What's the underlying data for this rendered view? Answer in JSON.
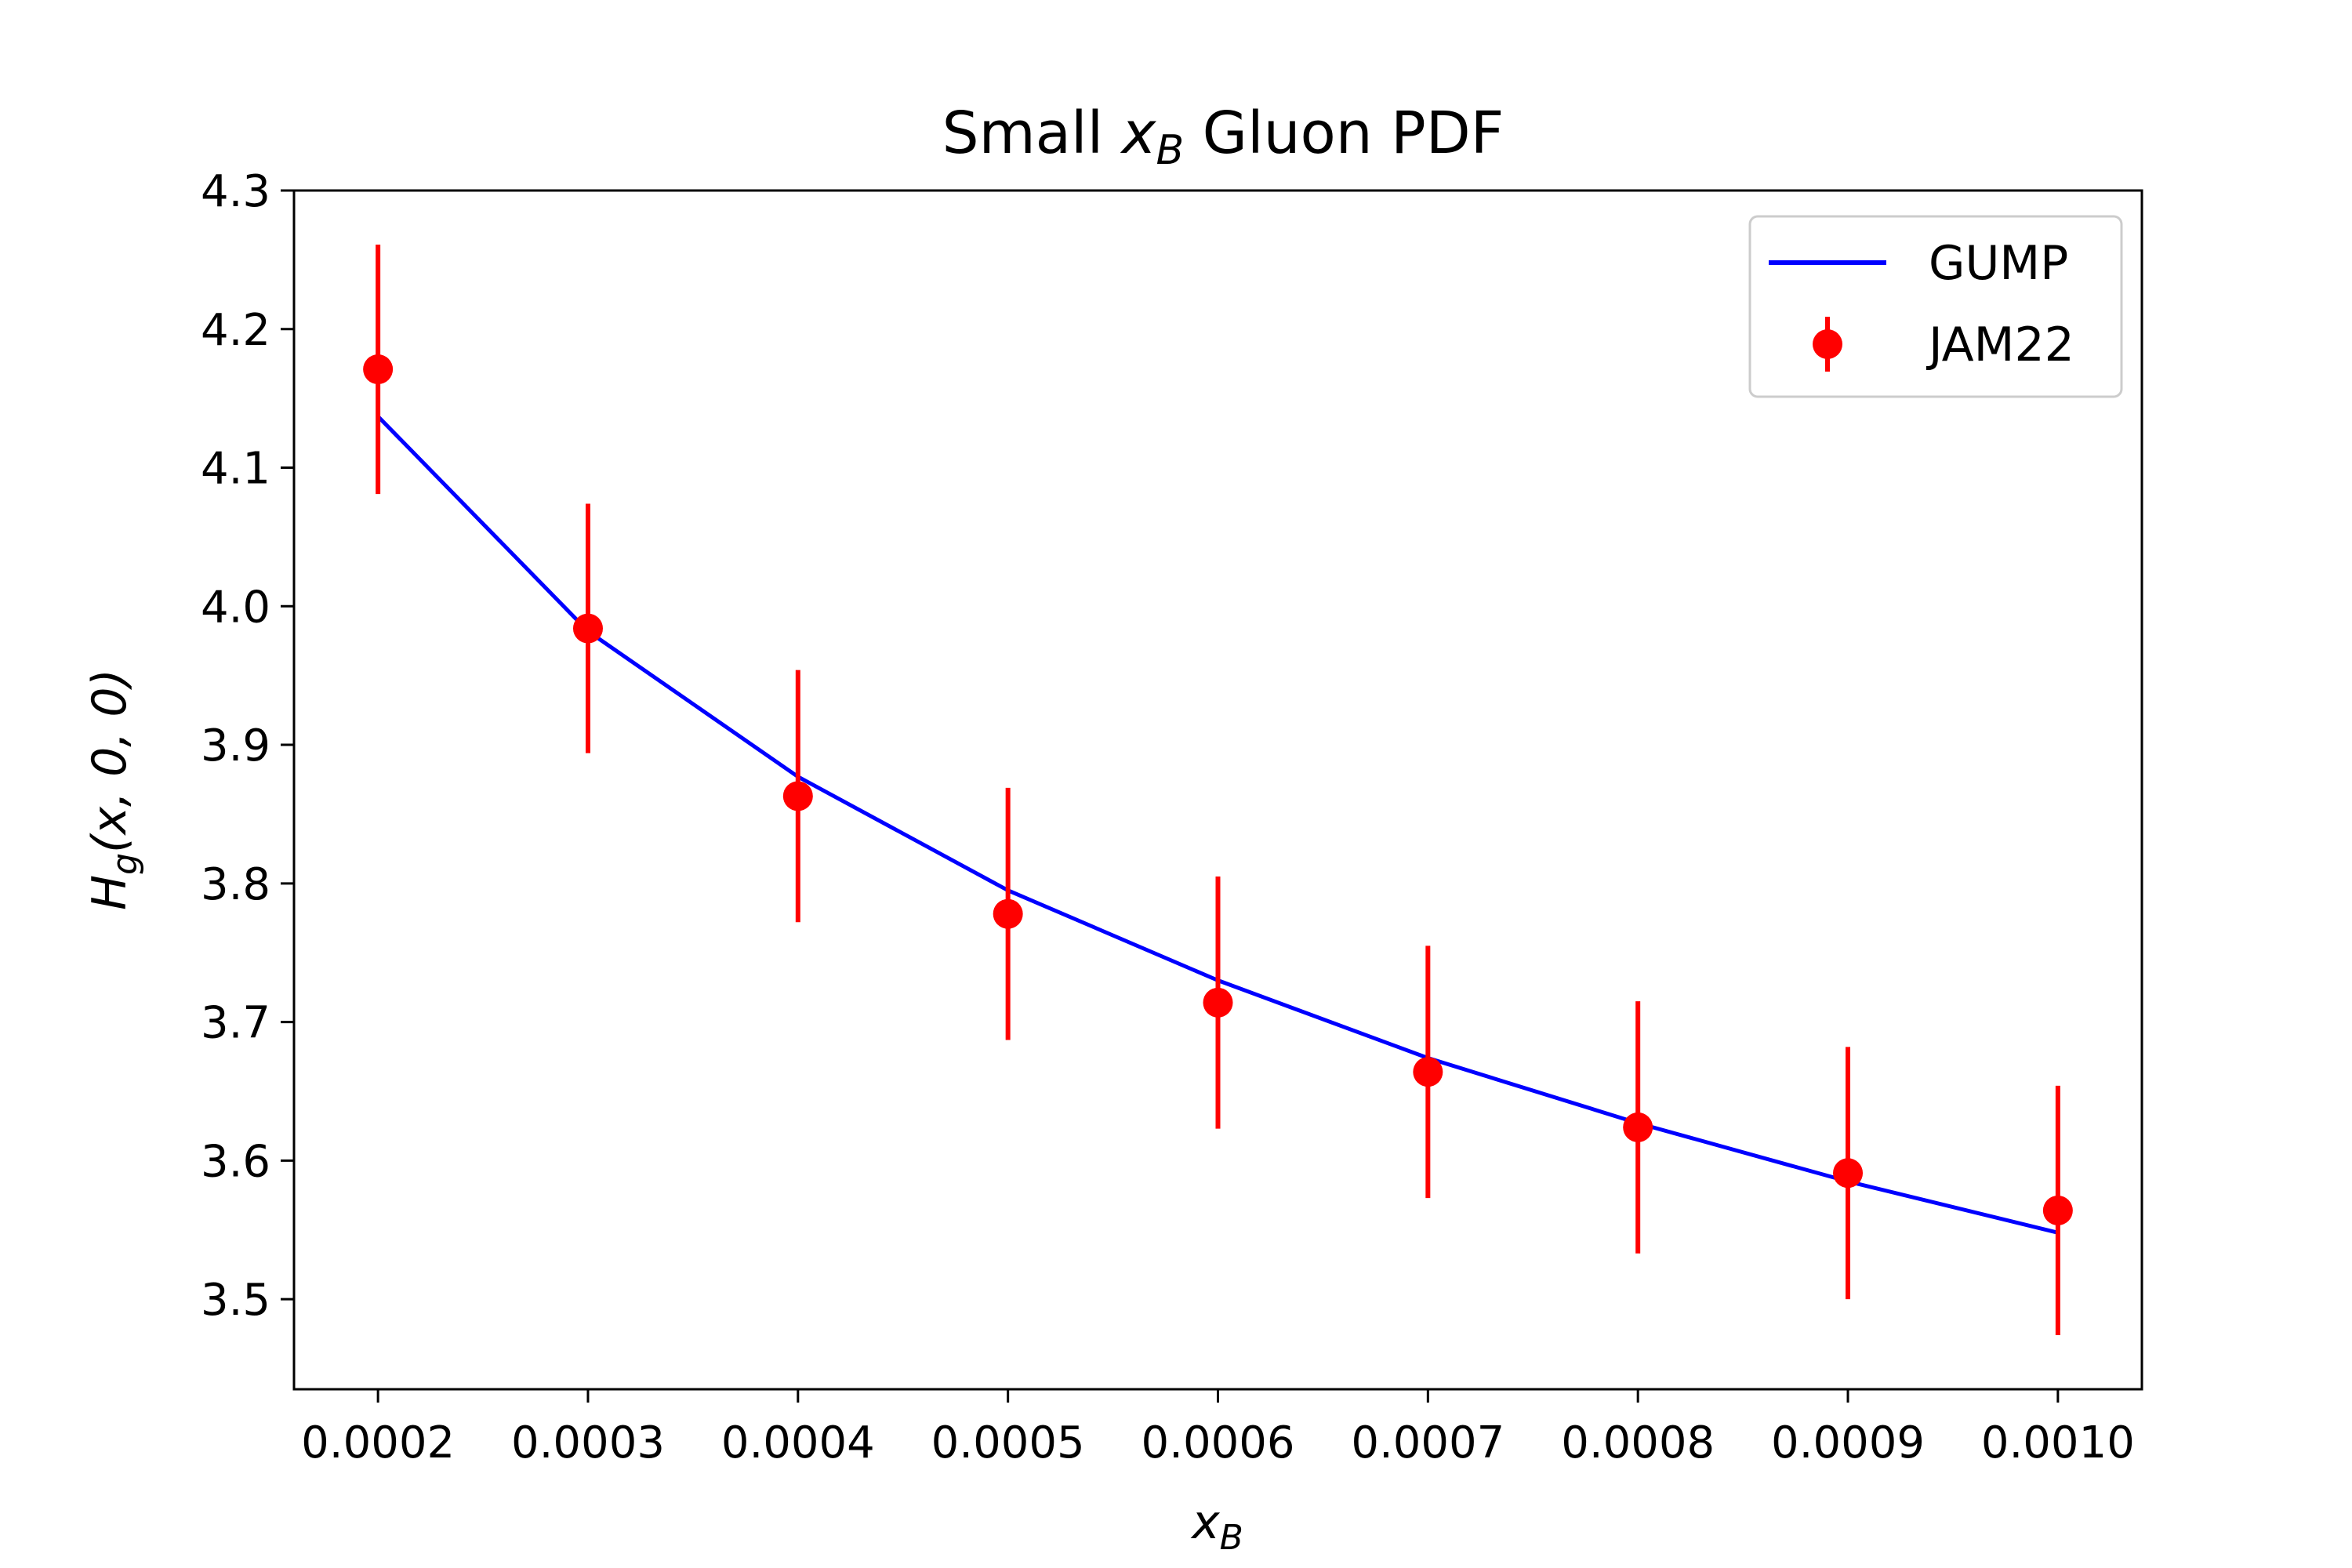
{
  "chart_data": {
    "type": "line",
    "title": {
      "prefix": "Small ",
      "var": "x",
      "sub": "B",
      "suffix": " Gluon PDF"
    },
    "xlabel": {
      "var": "x",
      "sub": "B"
    },
    "ylabel": {
      "func": "H",
      "sub": "g",
      "args": "(x, 0, 0)"
    },
    "xlim": [
      0.00016,
      0.00104
    ],
    "ylim": [
      3.435,
      4.3
    ],
    "xticks": [
      0.0002,
      0.0003,
      0.0004,
      0.0005,
      0.0006,
      0.0007,
      0.0008,
      0.0009,
      0.001
    ],
    "xtick_labels": [
      "0.0002",
      "0.0003",
      "0.0004",
      "0.0005",
      "0.0006",
      "0.0007",
      "0.0008",
      "0.0009",
      "0.0010"
    ],
    "yticks": [
      3.5,
      3.6,
      3.7,
      3.8,
      3.9,
      4.0,
      4.1,
      4.2,
      4.3
    ],
    "ytick_labels": [
      "3.5",
      "3.6",
      "3.7",
      "3.8",
      "3.9",
      "4.0",
      "4.1",
      "4.2",
      "4.3"
    ],
    "grid": false,
    "legend_position": "top-right",
    "series": [
      {
        "name": "GUMP",
        "kind": "line",
        "color": "#0000ff",
        "x": [
          0.0002,
          0.0003,
          0.0004,
          0.0005,
          0.0006,
          0.0007,
          0.0008,
          0.0009,
          0.001
        ],
        "y": [
          4.137,
          3.982,
          3.877,
          3.795,
          3.73,
          3.674,
          3.627,
          3.585,
          3.548
        ]
      },
      {
        "name": "JAM22",
        "kind": "errorbar",
        "color": "#ff0000",
        "x": [
          0.0002,
          0.0003,
          0.0004,
          0.0005,
          0.0006,
          0.0007,
          0.0008,
          0.0009,
          0.001
        ],
        "y": [
          4.171,
          3.984,
          3.863,
          3.778,
          3.714,
          3.664,
          3.624,
          3.591,
          3.564
        ],
        "yerr": [
          0.09,
          0.09,
          0.091,
          0.091,
          0.091,
          0.091,
          0.091,
          0.091,
          0.09
        ]
      }
    ]
  }
}
